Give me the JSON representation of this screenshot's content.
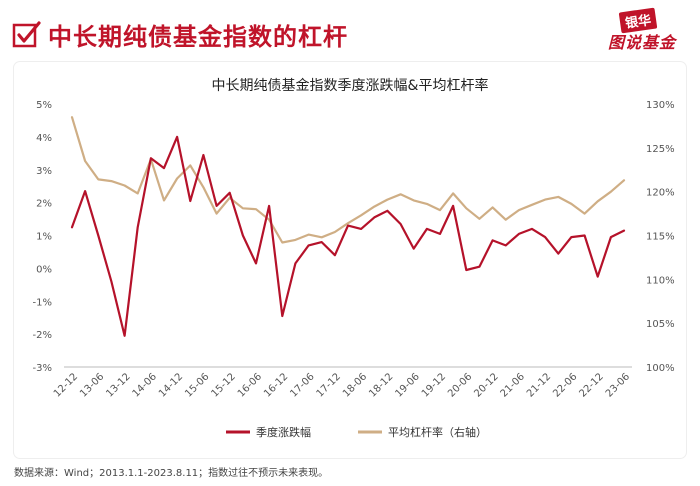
{
  "header": {
    "title": "中长期纯债基金指数的杠杆",
    "brand_top": "银华",
    "brand_bottom": "图说基金",
    "icon": "check-icon"
  },
  "chart_data": {
    "type": "line",
    "title": "中长期纯债基金指数季度涨跌幅&平均杠杆率",
    "categories": [
      "12-12",
      "13-06",
      "13-12",
      "14-06",
      "14-12",
      "15-06",
      "15-12",
      "16-06",
      "16-12",
      "17-06",
      "17-12",
      "18-06",
      "18-12",
      "19-06",
      "19-12",
      "20-06",
      "20-12",
      "21-06",
      "21-12",
      "22-06",
      "22-12",
      "23-06"
    ],
    "x": [
      "12-12",
      "13-03",
      "13-06",
      "13-09",
      "13-12",
      "14-03",
      "14-06",
      "14-09",
      "14-12",
      "15-03",
      "15-06",
      "15-09",
      "15-12",
      "16-03",
      "16-06",
      "16-09",
      "16-12",
      "17-03",
      "17-06",
      "17-09",
      "17-12",
      "18-03",
      "18-06",
      "18-09",
      "18-12",
      "19-03",
      "19-06",
      "19-09",
      "19-12",
      "20-03",
      "20-06",
      "20-09",
      "20-12",
      "21-03",
      "21-06",
      "21-09",
      "21-12",
      "22-03",
      "22-06",
      "22-09",
      "22-12",
      "23-03",
      "23-06"
    ],
    "series": [
      {
        "name": "季度涨跌幅",
        "axis": "left",
        "color": "#b5122a",
        "values": [
          1.25,
          2.35,
          1.0,
          -0.4,
          -2.05,
          1.25,
          3.35,
          3.05,
          4.0,
          2.05,
          3.45,
          1.9,
          2.3,
          1.0,
          0.15,
          1.9,
          -1.45,
          0.15,
          0.7,
          0.8,
          0.4,
          1.3,
          1.2,
          1.55,
          1.75,
          1.35,
          0.6,
          1.2,
          1.05,
          1.9,
          -0.05,
          0.05,
          0.85,
          0.7,
          1.05,
          1.2,
          0.95,
          0.45,
          0.95,
          1.0,
          -0.25,
          0.95,
          1.15
        ]
      },
      {
        "name": "平均杠杆率（右轴）",
        "axis": "right",
        "color": "#cfae85",
        "values": [
          128.5,
          123.5,
          121.4,
          121.2,
          120.7,
          119.8,
          123.7,
          119.0,
          121.5,
          123.0,
          120.5,
          117.5,
          119.3,
          118.1,
          118.0,
          116.8,
          114.2,
          114.5,
          115.1,
          114.8,
          115.4,
          116.4,
          117.3,
          118.3,
          119.1,
          119.7,
          119.0,
          118.6,
          117.9,
          119.8,
          118.1,
          116.9,
          118.2,
          116.8,
          117.9,
          118.5,
          119.1,
          119.4,
          118.6,
          117.5,
          118.9,
          120.0,
          121.3
        ]
      }
    ],
    "y_left": {
      "min": -3,
      "max": 5,
      "step": 1,
      "unit": "%",
      "ticks": [
        "-3%",
        "-2%",
        "-1%",
        "0%",
        "1%",
        "2%",
        "3%",
        "4%",
        "5%"
      ]
    },
    "y_right": {
      "min": 100,
      "max": 130,
      "step": 5,
      "unit": "%",
      "ticks": [
        "100%",
        "105%",
        "110%",
        "115%",
        "120%",
        "125%",
        "130%"
      ]
    },
    "grid": false,
    "legend_position": "bottom"
  },
  "footnote": "数据来源：Wind；2013.1.1-2023.8.11；指数过往不预示未来表现。"
}
